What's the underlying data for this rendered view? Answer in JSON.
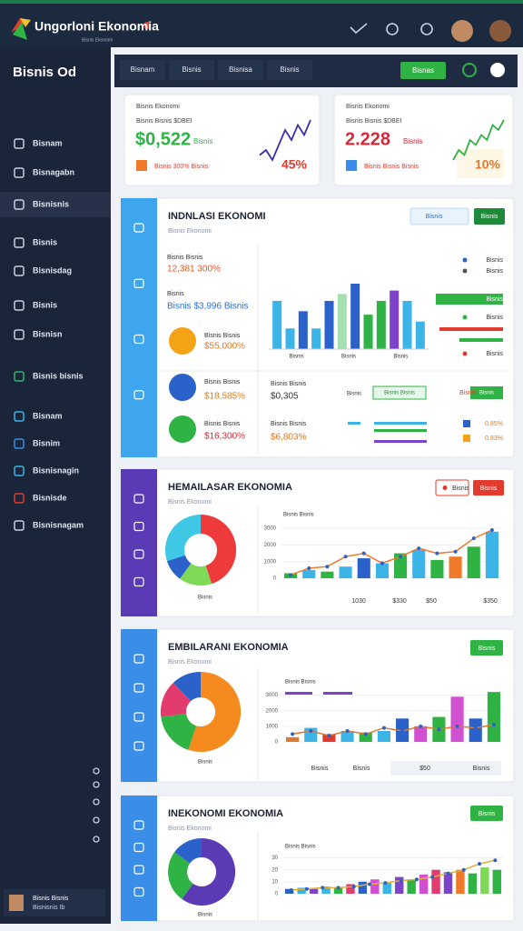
{
  "header": {
    "title": "Ungorloni Ekonomia",
    "tagline": "Bisnis Ekonomi"
  },
  "sidebar": {
    "title": "Bisnis Od",
    "items": [
      "Bisnam",
      "Bisnagabn",
      "Bisnisnis",
      "Bisnis",
      "Bisnisdag",
      "Bisnis",
      "Bisnisn",
      "Bisnis bisnis",
      "Bisnam",
      "Bisnim",
      "Bisnisnagin",
      "Bisnisde",
      "Bisnisnagam"
    ],
    "user": {
      "name": "Bisnis Bisnis",
      "role": "Bisnisnis Ib"
    }
  },
  "toolbar": {
    "tabs": [
      "Bisnam",
      "Bisnis",
      "Bisnisa",
      "Bisnis"
    ],
    "button": "Bisnas"
  },
  "cards": [
    {
      "label": "Bisnis Ekonomi",
      "caption": "Bisnis Bisnis $DBEI",
      "value": "$0,522",
      "unit": "Bisnis",
      "note": "Bisnis 300% Bisnis",
      "percent": "45%",
      "value_color": "#2fb344",
      "percent_color": "#e23b2e",
      "color": "#3a2fa8",
      "values": [
        3,
        4,
        2,
        5,
        8,
        6,
        9,
        7,
        10
      ]
    },
    {
      "label": "Bisnis Ekonomi",
      "caption": "Bisnis Bisnis $DBEI",
      "value": "2.228",
      "unit": "Bisnis",
      "note": "Bisnis Bisnis Bisnis",
      "percent": "10%",
      "value_color": "#d42a3a",
      "percent_color": "#e0782f",
      "color": "#2fb344",
      "values": [
        2,
        4,
        3,
        6,
        5,
        7,
        6,
        9,
        8,
        10
      ]
    }
  ],
  "panels": [
    {
      "title": "INDNLASI EKONOMI",
      "subtitle": "Bisnis Ekonomi",
      "accent": "#3ea6ee",
      "select": "Bisnis",
      "button": "Bisnis",
      "rows": [
        {
          "label": "Bisnis Bisnis",
          "value": "12,381 300%",
          "color": "#e05a1f"
        },
        {
          "label": "Bisnis",
          "value": "Bisnis $3,996 Bisnis",
          "color": "#2d6fd1"
        },
        {
          "label": "Bisnis Bisnis",
          "value": "$55,000%",
          "color": "#e0781f"
        },
        {
          "label": "Bisnis Bisnis",
          "value": "$18,585%",
          "color": "#e0781f"
        },
        {
          "label": "Bisnis Bisnis",
          "value": "$16,300%",
          "color": "#d42a3a"
        }
      ],
      "chart": {
        "categories": [
          "Bisnis",
          "Bisnis",
          "Bisnis"
        ],
        "values": [
          70,
          30,
          55,
          30,
          70,
          80,
          95,
          50,
          70,
          85,
          70,
          40
        ],
        "colors": [
          "#3db4e8",
          "#3db4e8",
          "#2a62c9",
          "#3db4e8",
          "#2a62c9",
          "#a5e0b0",
          "#2a62c9",
          "#2fb344",
          "#2fb344",
          "#7d43c8",
          "#3db4e8",
          "#3db4e8"
        ]
      },
      "legend": [
        "Bisnis",
        "Bisnis",
        "Bisnis",
        "Bisnis",
        "Bisnis"
      ],
      "stats": [
        {
          "label": "Bisnis Bisnis",
          "value": "$0,305"
        },
        {
          "label": "Bisnis Bisnis",
          "value": "$6,803%"
        }
      ],
      "chips": [
        "Bisnis Bisnis",
        "Bisnis",
        "Bisnis",
        "Bisnis"
      ],
      "percents": [
        "0.85%",
        "0.83%"
      ]
    },
    {
      "title": "HEMAILASAR EKONOMIA",
      "subtitle": "Bisnis Ekonomi",
      "accent": "#5b3bb5",
      "buttons": [
        "Bisnis",
        "Bisnis"
      ],
      "donut": {
        "values": [
          45,
          15,
          10,
          30
        ],
        "colors": [
          "#ee3a3a",
          "#7ed957",
          "#2a62c9",
          "#3ec8e6"
        ],
        "label": "Bisnis"
      },
      "chart": {
        "title": "Bisnis Bisnis",
        "ylim": [
          0,
          3500
        ],
        "yticks": [
          0,
          1000,
          2000,
          3000
        ],
        "values": [
          300,
          500,
          400,
          700,
          1200,
          900,
          1500,
          1700,
          1100,
          1300,
          1900,
          2800
        ],
        "colors": [
          "#2fb344",
          "#3db4e8",
          "#2fb344",
          "#3db4e8",
          "#2a62c9",
          "#3db4e8",
          "#2fb344",
          "#3db4e8",
          "#2fb344",
          "#f07a2a",
          "#2fb344",
          "#3db4e8"
        ],
        "line": [
          200,
          600,
          700,
          1300,
          1500,
          900,
          1300,
          1800,
          1500,
          1600,
          2400,
          2900
        ],
        "line_color": "#f07a2a"
      },
      "footer": [
        "1030",
        "$330",
        "$50",
        "$350"
      ]
    },
    {
      "title": "EMBILARANI EKONOMIA",
      "subtitle": "Bisnis Ekonomi",
      "accent": "#3a8ee8",
      "button": "Bisnis",
      "donut": {
        "values": [
          55,
          18,
          15,
          12
        ],
        "colors": [
          "#f58a1f",
          "#2fb344",
          "#e23b6e",
          "#2a62c9"
        ],
        "label": "Bisnis"
      },
      "chart": {
        "title": "Bisnis Bisnis",
        "ylim": [
          0,
          3500
        ],
        "yticks": [
          0,
          1000,
          2000,
          3000
        ],
        "values": [
          300,
          900,
          500,
          700,
          600,
          700,
          1500,
          1000,
          1600,
          2900,
          1500,
          3200
        ],
        "colors": [
          "#e0782f",
          "#3db4e8",
          "#e23b2e",
          "#3db4e8",
          "#2fb344",
          "#3db4e8",
          "#2a62c9",
          "#d14fd1",
          "#2fb344",
          "#d14fd1",
          "#2a62c9",
          "#2fb344"
        ],
        "line": [
          500,
          700,
          400,
          700,
          500,
          900,
          700,
          1000,
          800,
          1000,
          900,
          1100
        ],
        "line_color": "#e0782f"
      },
      "footer": [
        "Bisnis",
        "Bisnis",
        "$50",
        "Bisnis"
      ]
    },
    {
      "title": "INEKONOMI EKONOMIA",
      "subtitle": "Bisnis Ekonomi",
      "accent": "#3a8ee8",
      "button": "Bisnis",
      "donut": {
        "values": [
          60,
          25,
          15
        ],
        "colors": [
          "#5b3bb5",
          "#2fb344",
          "#2a62c9"
        ],
        "label": "Bisnis"
      },
      "chart": {
        "title": "Bisnis Bisnis",
        "ylim": [
          0,
          35
        ],
        "yticks": [
          0,
          10,
          20,
          30
        ],
        "values": [
          4,
          5,
          4,
          6,
          5,
          8,
          10,
          12,
          9,
          14,
          12,
          16,
          20,
          18,
          20,
          17,
          22,
          20
        ],
        "colors": [
          "#2a62c9",
          "#3db4e8",
          "#7d43c8",
          "#3db4e8",
          "#2fb344",
          "#e23b6e",
          "#2a62c9",
          "#d14fd1",
          "#3db4e8",
          "#7d43c8",
          "#2fb344",
          "#d14fd1",
          "#e23b6e",
          "#7d43c8",
          "#f07a2a",
          "#2fb344",
          "#7ed957",
          "#2fb344"
        ],
        "line": [
          3,
          4,
          5,
          5,
          6,
          8,
          9,
          11,
          12,
          14,
          17,
          20,
          25,
          28
        ],
        "line_color": "#e0b02f"
      }
    }
  ]
}
